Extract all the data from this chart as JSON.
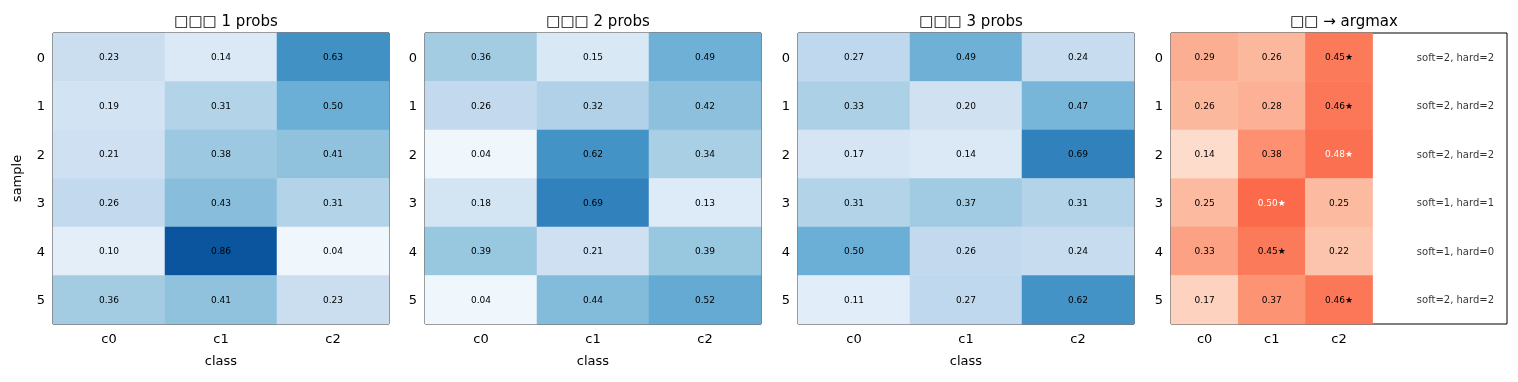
{
  "chart_data": [
    {
      "type": "heatmap",
      "title": "□□□ 1 probs",
      "xlabel": "class",
      "ylabel": "sample",
      "categories": [
        "c0",
        "c1",
        "c2"
      ],
      "y_categories": [
        "0",
        "1",
        "2",
        "3",
        "4",
        "5"
      ],
      "cells": [
        [
          0.23,
          0.14,
          0.63
        ],
        [
          0.19,
          0.31,
          0.5
        ],
        [
          0.21,
          0.38,
          0.41
        ],
        [
          0.26,
          0.43,
          0.31
        ],
        [
          0.1,
          0.86,
          0.04
        ],
        [
          0.36,
          0.41,
          0.23
        ]
      ],
      "cell_labels": [
        [
          "0.23",
          "0.14",
          "0.63"
        ],
        [
          "0.19",
          "0.31",
          "0.50"
        ],
        [
          "0.21",
          "0.38",
          "0.41"
        ],
        [
          "0.26",
          "0.43",
          "0.31"
        ],
        [
          "0.10",
          "0.86",
          "0.04"
        ],
        [
          "0.36",
          "0.41",
          "0.23"
        ]
      ]
    },
    {
      "type": "heatmap",
      "title": "□□□ 2 probs",
      "xlabel": "class",
      "categories": [
        "c0",
        "c1",
        "c2"
      ],
      "y_categories": [
        "0",
        "1",
        "2",
        "3",
        "4",
        "5"
      ],
      "cells": [
        [
          0.36,
          0.15,
          0.49
        ],
        [
          0.26,
          0.32,
          0.42
        ],
        [
          0.04,
          0.62,
          0.34
        ],
        [
          0.18,
          0.69,
          0.13
        ],
        [
          0.39,
          0.21,
          0.39
        ],
        [
          0.04,
          0.44,
          0.52
        ]
      ],
      "cell_labels": [
        [
          "0.36",
          "0.15",
          "0.49"
        ],
        [
          "0.26",
          "0.32",
          "0.42"
        ],
        [
          "0.04",
          "0.62",
          "0.34"
        ],
        [
          "0.18",
          "0.69",
          "0.13"
        ],
        [
          "0.39",
          "0.21",
          "0.39"
        ],
        [
          "0.04",
          "0.44",
          "0.52"
        ]
      ]
    },
    {
      "type": "heatmap",
      "title": "□□□ 3 probs",
      "xlabel": "class",
      "categories": [
        "c0",
        "c1",
        "c2"
      ],
      "y_categories": [
        "0",
        "1",
        "2",
        "3",
        "4",
        "5"
      ],
      "cells": [
        [
          0.27,
          0.49,
          0.24
        ],
        [
          0.33,
          0.2,
          0.47
        ],
        [
          0.17,
          0.14,
          0.69
        ],
        [
          0.31,
          0.37,
          0.31
        ],
        [
          0.5,
          0.26,
          0.24
        ],
        [
          0.11,
          0.27,
          0.62
        ]
      ],
      "cell_labels": [
        [
          "0.27",
          "0.49",
          "0.24"
        ],
        [
          "0.33",
          "0.20",
          "0.47"
        ],
        [
          "0.17",
          "0.14",
          "0.69"
        ],
        [
          "0.31",
          "0.37",
          "0.31"
        ],
        [
          "0.50",
          "0.26",
          "0.24"
        ],
        [
          "0.11",
          "0.27",
          "0.62"
        ]
      ]
    },
    {
      "type": "heatmap",
      "title": "□□ → argmax",
      "categories": [
        "c0",
        "c1",
        "c2",
        null,
        null
      ],
      "y_categories": [
        "0",
        "1",
        "2",
        "3",
        "4",
        "5"
      ],
      "cells": [
        [
          0.29,
          0.26,
          0.45,
          null,
          null
        ],
        [
          0.26,
          0.28,
          0.46,
          null,
          null
        ],
        [
          0.14,
          0.38,
          0.48,
          null,
          null
        ],
        [
          0.25,
          0.5,
          0.25,
          null,
          null
        ],
        [
          0.33,
          0.45,
          0.22,
          null,
          null
        ],
        [
          0.17,
          0.37,
          0.46,
          null,
          null
        ]
      ],
      "cell_labels": [
        [
          "0.29",
          "0.26",
          "0.45★",
          null,
          null
        ],
        [
          "0.26",
          "0.28",
          "0.46★",
          null,
          null
        ],
        [
          "0.14",
          "0.38",
          "0.48★",
          null,
          null
        ],
        [
          "0.25",
          "0.50★",
          "0.25",
          null,
          null
        ],
        [
          "0.33",
          "0.45★",
          "0.22",
          null,
          null
        ],
        [
          "0.17",
          "0.37",
          "0.46★",
          null,
          null
        ]
      ],
      "annotations": [
        "soft=2, hard=2",
        "soft=2, hard=2",
        "soft=2, hard=2",
        "soft=1, hard=1",
        "soft=1, hard=0",
        "soft=2, hard=2"
      ]
    }
  ]
}
